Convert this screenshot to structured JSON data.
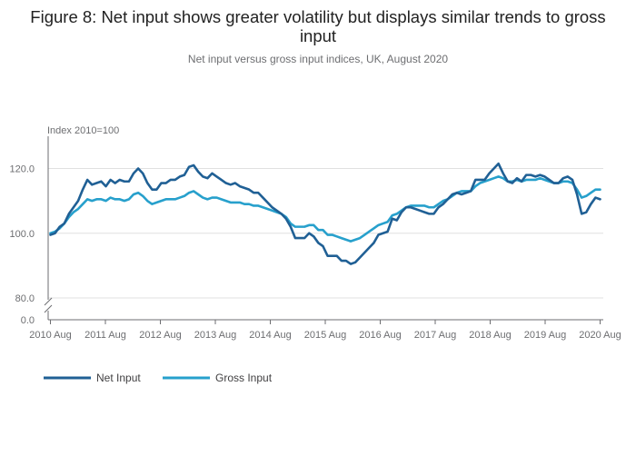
{
  "header": {
    "title": "Figure 8: Net input shows greater volatility but displays similar trends to gross input",
    "subtitle": "Net input versus gross input indices, UK, August 2020"
  },
  "chart_data": {
    "type": "line",
    "title": "Figure 8: Net input shows greater volatility but displays similar trends to gross input",
    "subtitle": "Net input versus gross input indices, UK, August 2020",
    "ylabel": "Index 2010=100",
    "xlabel": "",
    "y_ticks": [
      "0.0",
      "80.0",
      "100.0",
      "120.0"
    ],
    "y_break": [
      0,
      80
    ],
    "ylim": [
      80,
      130
    ],
    "x_ticks": [
      "2010 Aug",
      "2011 Aug",
      "2012 Aug",
      "2013 Aug",
      "2014 Aug",
      "2015 Aug",
      "2016 Aug",
      "2017 Aug",
      "2018 Aug",
      "2019 Aug",
      "2020 Aug"
    ],
    "x_start": "2010 Aug",
    "x_end": "2020 Aug",
    "grid": true,
    "legend_position": "bottom-left",
    "series": [
      {
        "name": "Net Input",
        "color": "#206095",
        "values": [
          99.5,
          100.0,
          102.0,
          103.0,
          106.0,
          108.0,
          110.0,
          113.5,
          116.5,
          115.0,
          115.5,
          116.0,
          114.5,
          116.5,
          115.5,
          116.5,
          116.0,
          116.0,
          118.5,
          120.0,
          118.5,
          115.5,
          113.5,
          113.5,
          115.5,
          115.5,
          116.5,
          116.5,
          117.5,
          118.0,
          120.5,
          121.0,
          119.0,
          117.5,
          117.0,
          118.5,
          117.5,
          116.5,
          115.5,
          115.0,
          115.5,
          114.5,
          114.0,
          113.5,
          112.5,
          112.5,
          111.0,
          109.5,
          108.0,
          107.0,
          106.0,
          104.5,
          102.0,
          98.5,
          98.5,
          98.5,
          100.0,
          99.0,
          97.0,
          96.0,
          93.0,
          93.0,
          93.0,
          91.5,
          91.5,
          90.5,
          91.0,
          92.5,
          94.0,
          95.5,
          97.0,
          99.5,
          100.0,
          100.5,
          104.5,
          104.0,
          106.5,
          108.0,
          108.0,
          107.5,
          107.0,
          106.5,
          106.0,
          106.0,
          108.0,
          109.0,
          110.5,
          112.0,
          112.5,
          112.0,
          112.5,
          113.0,
          116.5,
          116.5,
          116.5,
          118.5,
          120.0,
          121.5,
          118.5,
          116.0,
          115.5,
          117.0,
          116.0,
          118.0,
          118.0,
          117.5,
          118.0,
          117.5,
          116.5,
          115.5,
          115.5,
          117.0,
          117.5,
          116.5,
          112.0,
          106.0,
          106.5,
          109.0,
          111.0,
          110.5
        ]
      },
      {
        "name": "Gross Input",
        "color": "#27a0cc",
        "values": [
          100.0,
          100.5,
          101.5,
          103.0,
          105.0,
          106.5,
          107.5,
          109.0,
          110.5,
          110.0,
          110.5,
          110.5,
          110.0,
          111.0,
          110.5,
          110.5,
          110.0,
          110.5,
          112.0,
          112.5,
          111.5,
          110.0,
          109.0,
          109.5,
          110.0,
          110.5,
          110.5,
          110.5,
          111.0,
          111.5,
          112.5,
          113.0,
          112.0,
          111.0,
          110.5,
          111.0,
          111.0,
          110.5,
          110.0,
          109.5,
          109.5,
          109.5,
          109.0,
          109.0,
          108.5,
          108.5,
          108.0,
          107.5,
          107.0,
          106.5,
          106.0,
          105.0,
          103.0,
          102.0,
          102.0,
          102.0,
          102.5,
          102.5,
          101.0,
          101.0,
          99.5,
          99.5,
          99.0,
          98.5,
          98.0,
          97.5,
          98.0,
          98.5,
          99.5,
          100.5,
          101.5,
          102.5,
          103.0,
          103.5,
          105.5,
          106.0,
          107.0,
          108.0,
          108.5,
          108.5,
          108.5,
          108.5,
          108.0,
          108.0,
          109.0,
          110.0,
          110.5,
          111.5,
          112.5,
          113.0,
          113.0,
          113.0,
          114.5,
          115.5,
          116.0,
          116.5,
          117.0,
          117.5,
          117.0,
          116.0,
          116.0,
          116.5,
          116.0,
          116.5,
          116.5,
          116.5,
          117.0,
          116.5,
          116.0,
          115.5,
          115.5,
          116.0,
          116.0,
          115.5,
          113.5,
          111.0,
          111.5,
          112.5,
          113.5,
          113.5
        ]
      }
    ]
  }
}
